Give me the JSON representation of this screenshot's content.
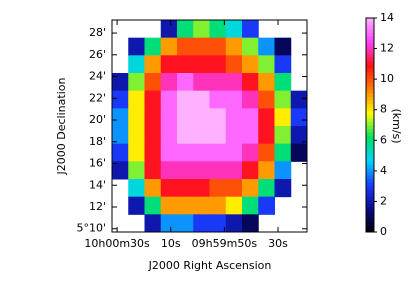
{
  "chart_data": {
    "type": "heatmap",
    "xlabel": "J2000 Right Ascension",
    "ylabel": "J2000 Declination",
    "colorbar_label": "(km/s)",
    "xlim": [
      91.9,
      19.2
    ],
    "xticks": [
      {
        "value": 90,
        "label": "10h00m30s"
      },
      {
        "value": 70,
        "label": "10s"
      },
      {
        "value": 50,
        "label": "09h59m50s"
      },
      {
        "value": 30,
        "label": "30s"
      }
    ],
    "ylim": [
      9.7,
      29.2
    ],
    "yticks": [
      {
        "value": 10,
        "label": "5°10'"
      },
      {
        "value": 12,
        "label": "12'"
      },
      {
        "value": 14,
        "label": "14'"
      },
      {
        "value": 16,
        "label": "16'"
      },
      {
        "value": 18,
        "label": "18'"
      },
      {
        "value": 20,
        "label": "20'"
      },
      {
        "value": 22,
        "label": "22'"
      },
      {
        "value": 24,
        "label": "24'"
      },
      {
        "value": 26,
        "label": "26'"
      },
      {
        "value": 28,
        "label": "28'"
      }
    ],
    "clim": [
      0,
      14
    ],
    "cticks": [
      0,
      2,
      4,
      6,
      8,
      10,
      12,
      14
    ],
    "colormap": [
      "#000000",
      "#0a0a8c",
      "#1a3cff",
      "#00d4ff",
      "#00e060",
      "#ffff00",
      "#ff8000",
      "#ff1010",
      "#ff40ff",
      "#ffb0ff"
    ],
    "z": [
      [
        null,
        null,
        null,
        2,
        6,
        7,
        6,
        5,
        3,
        null,
        null,
        null
      ],
      [
        null,
        2,
        6,
        9,
        10,
        10,
        10,
        9,
        7,
        4,
        1,
        null
      ],
      [
        null,
        5,
        9,
        11,
        11,
        11,
        11,
        10,
        9,
        7,
        3,
        null
      ],
      [
        2,
        7,
        10,
        12,
        13,
        12,
        12,
        12,
        11,
        9,
        6,
        null
      ],
      [
        3,
        8,
        11,
        13,
        14,
        14,
        13,
        13,
        12,
        10,
        7,
        2
      ],
      [
        4,
        8,
        11,
        13,
        14,
        14,
        14,
        13,
        13,
        11,
        8,
        3
      ],
      [
        4,
        8,
        11,
        13,
        14,
        14,
        14,
        13,
        13,
        11,
        7,
        2
      ],
      [
        3,
        8,
        11,
        13,
        13,
        13,
        13,
        13,
        12,
        10,
        6,
        1
      ],
      [
        2,
        7,
        11,
        12,
        12,
        12,
        12,
        12,
        11,
        9,
        4,
        null
      ],
      [
        null,
        5,
        9,
        11,
        11,
        11,
        10,
        10,
        9,
        6,
        2,
        null
      ],
      [
        null,
        2,
        6,
        9,
        9,
        9,
        9,
        8,
        6,
        3,
        null,
        null
      ],
      [
        null,
        null,
        2,
        4,
        4,
        3,
        3,
        2,
        1,
        null,
        null,
        null
      ]
    ]
  }
}
